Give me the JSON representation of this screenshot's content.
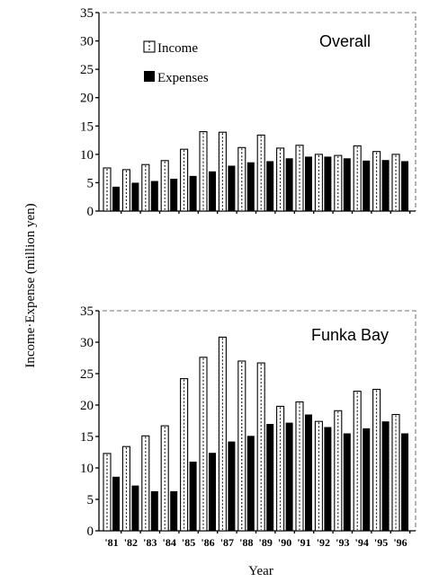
{
  "figure": {
    "y_axis_label": "Income·Expense (million yen)",
    "x_axis_label": "Year"
  },
  "colors": {
    "income_fill": "#ffffff",
    "expense_fill": "#000000",
    "axis": "#000000"
  },
  "chart_data": [
    {
      "type": "bar",
      "title": "Overall",
      "categories": [
        "'81",
        "'82",
        "'83",
        "'84",
        "'85",
        "'86",
        "'87",
        "'88",
        "'89",
        "'90",
        "'91",
        "'92",
        "'93",
        "'94",
        "'95",
        "'96"
      ],
      "series": [
        {
          "name": "Income",
          "values": [
            7.6,
            7.3,
            8.2,
            8.9,
            10.9,
            14.0,
            13.9,
            11.2,
            13.4,
            11.1,
            11.6,
            10.0,
            9.8,
            11.5,
            10.5,
            10.0
          ]
        },
        {
          "name": "Expenses",
          "values": [
            4.3,
            5.0,
            5.3,
            5.7,
            6.2,
            7.0,
            8.0,
            8.6,
            8.8,
            9.3,
            9.6,
            9.6,
            9.3,
            8.9,
            9.0,
            8.8
          ]
        }
      ],
      "ylim": [
        0,
        35
      ],
      "yticks": [
        0,
        5,
        10,
        15,
        20,
        25,
        30,
        35
      ],
      "legend_position": "top-left",
      "grid": false
    },
    {
      "type": "bar",
      "title": "Funka Bay",
      "categories": [
        "'81",
        "'82",
        "'83",
        "'84",
        "'85",
        "'86",
        "'87",
        "'88",
        "'89",
        "'90",
        "'91",
        "'92",
        "'93",
        "'94",
        "'95",
        "'96"
      ],
      "series": [
        {
          "name": "Income",
          "values": [
            12.3,
            13.4,
            15.1,
            16.7,
            24.2,
            27.6,
            30.8,
            27.0,
            26.7,
            19.8,
            20.5,
            17.4,
            19.1,
            22.2,
            22.5,
            18.5
          ]
        },
        {
          "name": "Expenses",
          "values": [
            8.6,
            7.2,
            6.3,
            6.3,
            11.0,
            12.4,
            14.2,
            15.1,
            17.0,
            17.2,
            18.5,
            16.5,
            15.5,
            16.3,
            17.4,
            15.5
          ]
        }
      ],
      "ylim": [
        0,
        35
      ],
      "yticks": [
        0,
        5,
        10,
        15,
        20,
        25,
        30,
        35
      ],
      "grid": false
    }
  ]
}
